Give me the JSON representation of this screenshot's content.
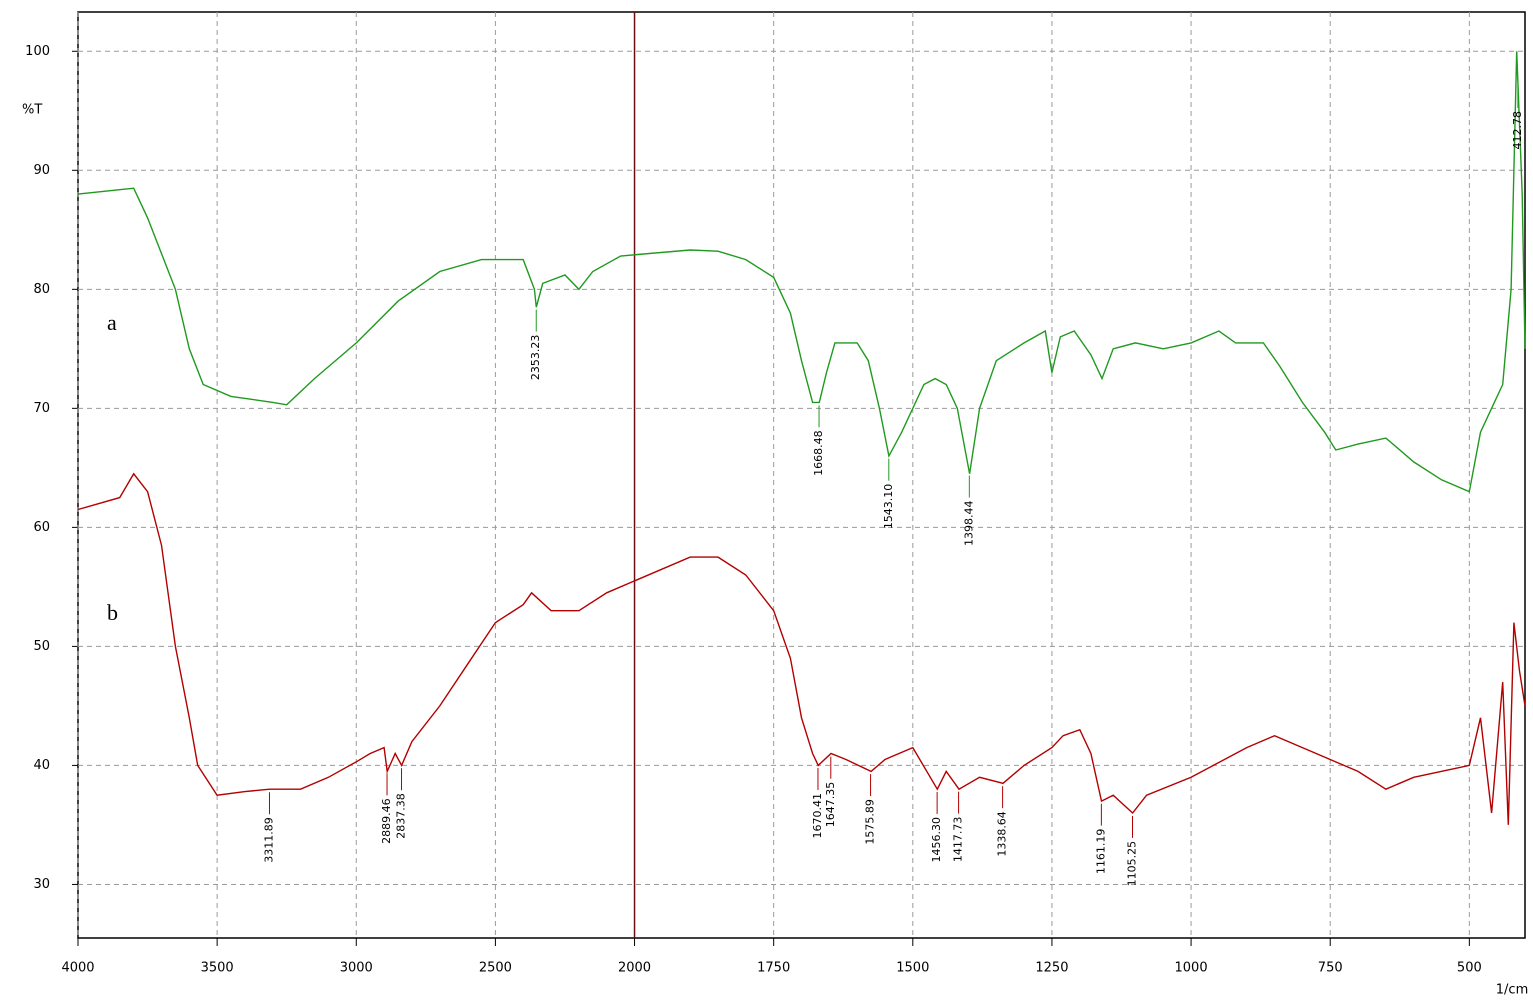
{
  "chart_data": {
    "type": "line",
    "y_label": "%T",
    "x_label": "1/cm",
    "xlim": [
      4000,
      400
    ],
    "x_scale_change": 2000,
    "x_scale_factor": 2,
    "xticks": [
      4000,
      3500,
      3000,
      2500,
      2000,
      1750,
      1500,
      1250,
      1000,
      750,
      500
    ],
    "ylim": [
      25.5,
      103.3
    ],
    "yticks": [
      30,
      40,
      50,
      60,
      70,
      80,
      90,
      100
    ],
    "grid": true,
    "series": [
      {
        "name": "a",
        "color": "#1f9a1f",
        "x": [
          4000,
          3800,
          3750,
          3650,
          3600,
          3550,
          3450,
          3300,
          3250,
          3150,
          3000,
          2850,
          2700,
          2550,
          2400,
          2360,
          2353,
          2330,
          2250,
          2200,
          2150,
          2050,
          1900,
          1850,
          1800,
          1750,
          1720,
          1700,
          1680,
          1668,
          1655,
          1640,
          1600,
          1580,
          1560,
          1543,
          1520,
          1480,
          1460,
          1440,
          1420,
          1398,
          1380,
          1350,
          1300,
          1262,
          1250,
          1235,
          1210,
          1180,
          1160,
          1140,
          1100,
          1050,
          1000,
          950,
          920,
          870,
          840,
          800,
          760,
          740,
          700,
          650,
          600,
          550,
          500,
          480,
          460,
          440,
          425,
          415,
          405,
          400
        ],
        "values": [
          88,
          88.5,
          86,
          80,
          75,
          72,
          71,
          70.5,
          70.3,
          72.5,
          75.5,
          79,
          81.5,
          82.5,
          82.5,
          80,
          78.5,
          80.5,
          81.2,
          80,
          81.5,
          82.8,
          83.3,
          83.2,
          82.5,
          81,
          78,
          74,
          70.5,
          70.5,
          73,
          75.5,
          75.5,
          74,
          70,
          66,
          68,
          72,
          72.5,
          72,
          70,
          64.5,
          70,
          74,
          75.5,
          76.5,
          73,
          76,
          76.5,
          74.5,
          72.5,
          75,
          75.5,
          75,
          75.5,
          76.5,
          75.5,
          75.5,
          73.5,
          70.5,
          68,
          66.5,
          67,
          67.5,
          65.5,
          64,
          63,
          68,
          70,
          72,
          80,
          100,
          88,
          75
        ],
        "peaks": [
          2353.23,
          1668.48,
          {
            "value": 1543.1,
            "label": "1543.10"
          },
          1398.44,
          412.78
        ]
      },
      {
        "name": "b",
        "color": "#b30000",
        "x": [
          4000,
          3850,
          3800,
          3750,
          3700,
          3650,
          3600,
          3570,
          3500,
          3400,
          3311,
          3200,
          3100,
          3000,
          2950,
          2900,
          2889,
          2860,
          2837,
          2800,
          2700,
          2600,
          2500,
          2400,
          2370,
          2300,
          2200,
          2100,
          2000,
          1900,
          1850,
          1800,
          1750,
          1720,
          1700,
          1680,
          1670,
          1647,
          1620,
          1575,
          1550,
          1500,
          1456,
          1440,
          1417,
          1380,
          1338,
          1300,
          1250,
          1230,
          1200,
          1180,
          1161,
          1140,
          1105,
          1080,
          1000,
          900,
          850,
          800,
          700,
          650,
          600,
          500,
          480,
          460,
          440,
          430,
          420,
          410,
          400
        ],
        "values": [
          61.5,
          62.5,
          64.5,
          63,
          58.5,
          50,
          44,
          40,
          37.5,
          37.8,
          38,
          38,
          39,
          40.3,
          41,
          41.5,
          39.5,
          41,
          40,
          42,
          45,
          48.5,
          52,
          53.5,
          54.5,
          53,
          53,
          54.5,
          55.5,
          57.5,
          57.5,
          56,
          53,
          49,
          44,
          41,
          40,
          41,
          40.5,
          39.5,
          40.5,
          41.5,
          38,
          39.5,
          38,
          39,
          38.5,
          40,
          41.5,
          42.5,
          43,
          41,
          37,
          37.5,
          36,
          37.5,
          39,
          41.5,
          42.5,
          41.5,
          39.5,
          38,
          39,
          40,
          44,
          36,
          47,
          35,
          52,
          48,
          45
        ],
        "peaks": [
          3311.89,
          2889.46,
          2837.38,
          1670.41,
          1647.35,
          1575.89,
          {
            "value": 1456.3,
            "label": "1456.30"
          },
          1417.73,
          1338.64,
          1161.19,
          1105.25
        ]
      }
    ]
  }
}
